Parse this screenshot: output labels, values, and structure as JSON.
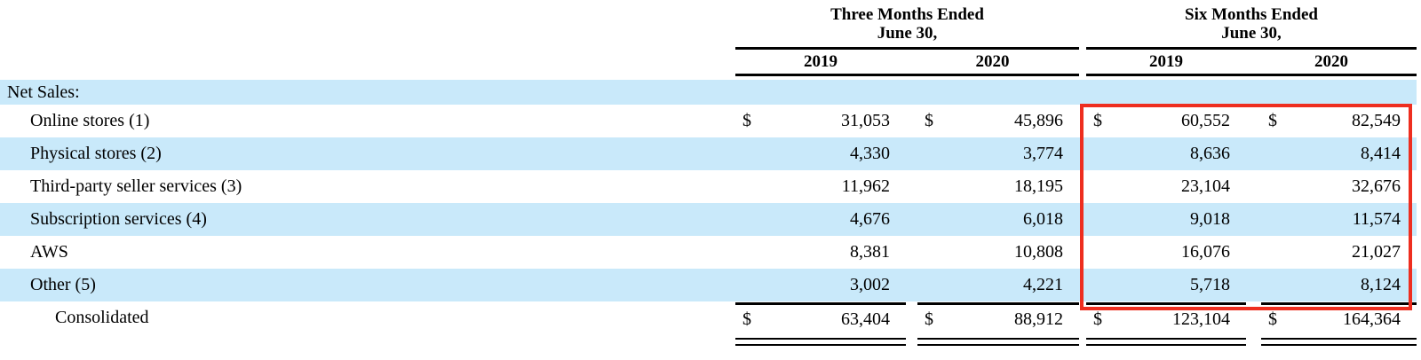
{
  "table": {
    "groups": [
      {
        "title_line1": "Three Months Ended",
        "title_line2": "June 30,",
        "years": [
          "2019",
          "2020"
        ]
      },
      {
        "title_line1": "Six Months Ended",
        "title_line2": "June 30,",
        "years": [
          "2019",
          "2020"
        ]
      }
    ],
    "section_label": "Net Sales:",
    "rows": [
      {
        "label": "Online stores (1)",
        "currency": "$",
        "values": [
          "31,053",
          "45,896",
          "60,552",
          "82,549"
        ]
      },
      {
        "label": "Physical stores (2)",
        "currency": "",
        "values": [
          "4,330",
          "3,774",
          "8,636",
          "8,414"
        ]
      },
      {
        "label": "Third-party seller services (3)",
        "currency": "",
        "values": [
          "11,962",
          "18,195",
          "23,104",
          "32,676"
        ]
      },
      {
        "label": "Subscription services (4)",
        "currency": "",
        "values": [
          "4,676",
          "6,018",
          "9,018",
          "11,574"
        ]
      },
      {
        "label": "AWS",
        "currency": "",
        "values": [
          "8,381",
          "10,808",
          "16,076",
          "21,027"
        ]
      },
      {
        "label": "Other (5)",
        "currency": "",
        "values": [
          "3,002",
          "4,221",
          "5,718",
          "8,124"
        ]
      }
    ],
    "total": {
      "label": "Consolidated",
      "currency": "$",
      "values": [
        "63,404",
        "88,912",
        "123,104",
        "164,364"
      ]
    }
  },
  "colors": {
    "stripe": "#c9e9fa",
    "highlight": "#ee2e1f",
    "rule": "#000000"
  }
}
